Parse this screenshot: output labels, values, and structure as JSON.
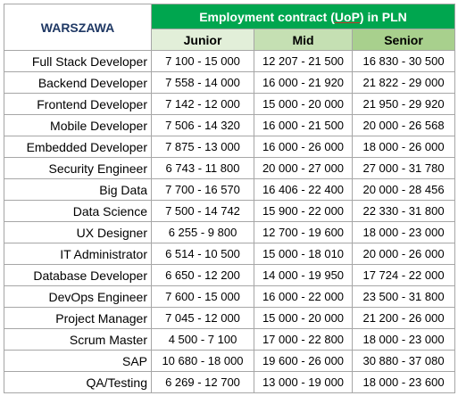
{
  "city": "WARSZAWA",
  "contract_label_pre": "Employment contract (",
  "contract_label_uop": "UoP",
  "contract_label_post": ") in PLN",
  "levels": {
    "junior": "Junior",
    "mid": "Mid",
    "senior": "Senior"
  },
  "rows": [
    {
      "role": "Full Stack Developer",
      "junior": "7 100 - 15 000",
      "mid": "12 207 - 21 500",
      "senior": "16 830 - 30 500"
    },
    {
      "role": "Backend Developer",
      "junior": "7 558 - 14 000",
      "mid": "16 000 - 21 920",
      "senior": "21 822 - 29 000"
    },
    {
      "role": "Frontend Developer",
      "junior": "7 142 - 12 000",
      "mid": "15 000 - 20 000",
      "senior": "21 950 - 29 920"
    },
    {
      "role": "Mobile Developer",
      "junior": "7 506 - 14 320",
      "mid": "16 000 - 21 500",
      "senior": "20 000 - 26 568"
    },
    {
      "role": "Embedded Developer",
      "junior": "7 875 - 13 000",
      "mid": "16 000 - 26 000",
      "senior": "18 000 - 26 000"
    },
    {
      "role": "Security Engineer",
      "junior": "6 743 - 11 800",
      "mid": "20 000 - 27 000",
      "senior": "27 000 - 31 780"
    },
    {
      "role": "Big Data",
      "junior": "7 700 - 16 570",
      "mid": "16 406 - 22 400",
      "senior": "20 000 - 28 456"
    },
    {
      "role": "Data Science",
      "junior": "7 500 - 14 742",
      "mid": "15 900 - 22 000",
      "senior": "22 330 - 31 800"
    },
    {
      "role": "UX Designer",
      "junior": "6 255 - 9 800",
      "mid": "12 700 - 19 600",
      "senior": "18 000 - 23 000"
    },
    {
      "role": "IT Administrator",
      "junior": "6 514 - 10 500",
      "mid": "15 000 - 18 010",
      "senior": "20 000 - 26 000"
    },
    {
      "role": "Database Developer",
      "junior": "6 650 - 12 200",
      "mid": "14 000 - 19 950",
      "senior": "17 724 - 22 000"
    },
    {
      "role": "DevOps Engineer",
      "junior": "7 600 - 15 000",
      "mid": "16 000 - 22 000",
      "senior": "23 500 - 31 800"
    },
    {
      "role": "Project Manager",
      "junior": "7 045 - 12 000",
      "mid": "15 000 - 20 000",
      "senior": "21 200 - 26 000"
    },
    {
      "role": "Scrum Master",
      "junior": "4 500 - 7 100",
      "mid": "17 000 - 22 800",
      "senior": "18 000 - 23 000"
    },
    {
      "role": "SAP",
      "junior": "10 680 - 18 000",
      "mid": "19 600 - 26 000",
      "senior": "30 880 - 37 080"
    },
    {
      "role": "QA/Testing",
      "junior": "6 269 - 12 700",
      "mid": "13 000 - 19 000",
      "senior": "18 000 - 23 600"
    }
  ]
}
